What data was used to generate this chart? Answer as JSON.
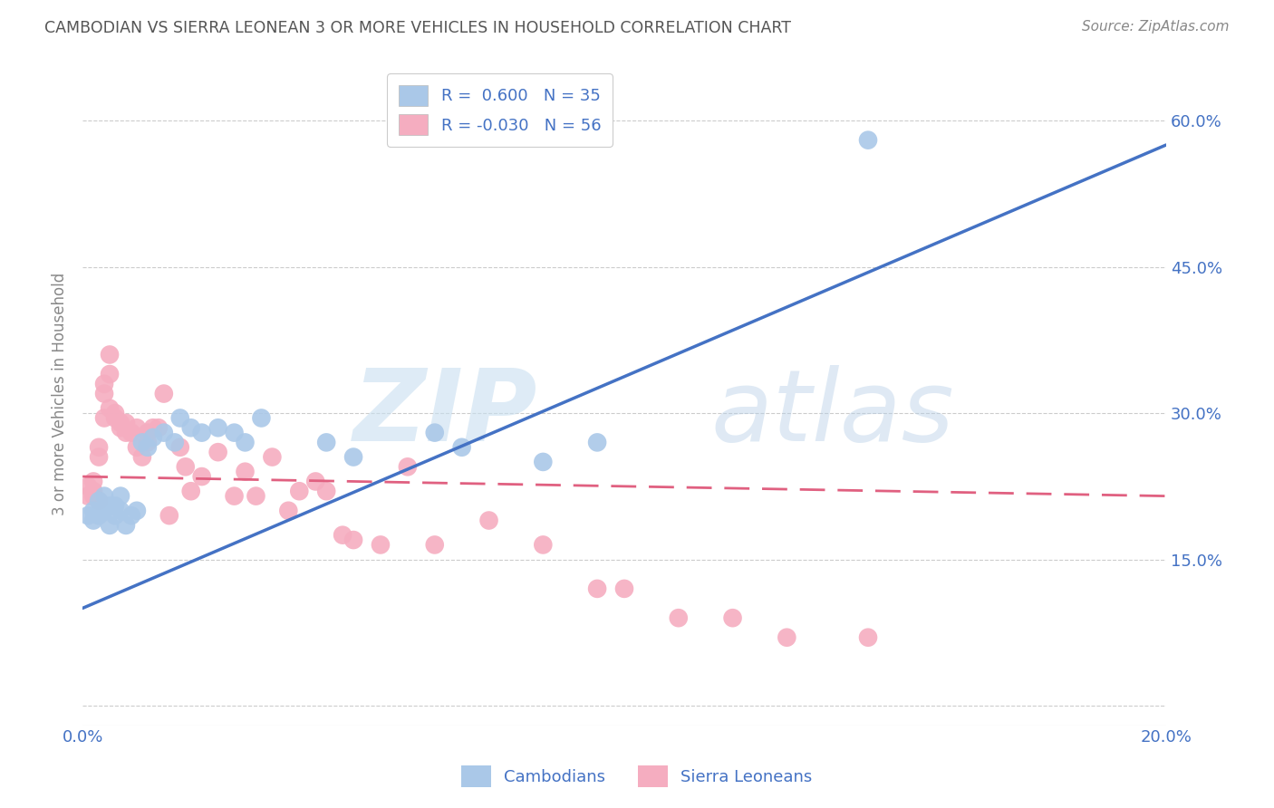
{
  "title": "CAMBODIAN VS SIERRA LEONEAN 3 OR MORE VEHICLES IN HOUSEHOLD CORRELATION CHART",
  "source": "Source: ZipAtlas.com",
  "ylabel": "3 or more Vehicles in Household",
  "xmin": 0.0,
  "xmax": 0.2,
  "ymin": -0.02,
  "ymax": 0.66,
  "yticks": [
    0.0,
    0.15,
    0.3,
    0.45,
    0.6
  ],
  "ytick_labels_right": [
    "",
    "15.0%",
    "30.0%",
    "45.0%",
    "60.0%"
  ],
  "xticks": [
    0.0,
    0.05,
    0.1,
    0.15,
    0.2
  ],
  "xtick_labels": [
    "0.0%",
    "",
    "",
    "",
    "20.0%"
  ],
  "cambodian_R": 0.6,
  "cambodian_N": 35,
  "sierraleone_R": -0.03,
  "sierraleone_N": 56,
  "cambodian_color": "#aac8e8",
  "sierraleone_color": "#f5adc0",
  "cambodian_line_color": "#4472c4",
  "sierraleone_line_color": "#e06080",
  "background_color": "#ffffff",
  "grid_color": "#cccccc",
  "watermark_zip": "ZIP",
  "watermark_atlas": "atlas",
  "title_color": "#555555",
  "source_color": "#888888",
  "axis_label_color": "#888888",
  "tick_color": "#4472c4",
  "legend_text_color": "#4472c4",
  "cambodian_x": [
    0.001,
    0.002,
    0.002,
    0.003,
    0.003,
    0.004,
    0.004,
    0.005,
    0.005,
    0.006,
    0.006,
    0.007,
    0.007,
    0.008,
    0.009,
    0.01,
    0.011,
    0.012,
    0.013,
    0.015,
    0.017,
    0.018,
    0.02,
    0.022,
    0.025,
    0.028,
    0.03,
    0.033,
    0.045,
    0.05,
    0.065,
    0.07,
    0.085,
    0.095,
    0.145
  ],
  "cambodian_y": [
    0.195,
    0.19,
    0.2,
    0.195,
    0.21,
    0.2,
    0.215,
    0.205,
    0.185,
    0.205,
    0.195,
    0.215,
    0.2,
    0.185,
    0.195,
    0.2,
    0.27,
    0.265,
    0.275,
    0.28,
    0.27,
    0.295,
    0.285,
    0.28,
    0.285,
    0.28,
    0.27,
    0.295,
    0.27,
    0.255,
    0.28,
    0.265,
    0.25,
    0.27,
    0.58
  ],
  "sierraleone_x": [
    0.001,
    0.001,
    0.002,
    0.002,
    0.002,
    0.003,
    0.003,
    0.003,
    0.004,
    0.004,
    0.004,
    0.005,
    0.005,
    0.005,
    0.006,
    0.006,
    0.007,
    0.007,
    0.008,
    0.008,
    0.009,
    0.01,
    0.01,
    0.011,
    0.012,
    0.012,
    0.013,
    0.014,
    0.015,
    0.016,
    0.018,
    0.019,
    0.02,
    0.022,
    0.025,
    0.028,
    0.03,
    0.032,
    0.035,
    0.038,
    0.04,
    0.043,
    0.045,
    0.048,
    0.05,
    0.055,
    0.06,
    0.065,
    0.075,
    0.085,
    0.095,
    0.1,
    0.11,
    0.12,
    0.13,
    0.145
  ],
  "sierraleone_y": [
    0.215,
    0.225,
    0.23,
    0.22,
    0.215,
    0.265,
    0.255,
    0.21,
    0.32,
    0.33,
    0.295,
    0.36,
    0.34,
    0.305,
    0.3,
    0.295,
    0.29,
    0.285,
    0.29,
    0.28,
    0.28,
    0.265,
    0.285,
    0.255,
    0.28,
    0.27,
    0.285,
    0.285,
    0.32,
    0.195,
    0.265,
    0.245,
    0.22,
    0.235,
    0.26,
    0.215,
    0.24,
    0.215,
    0.255,
    0.2,
    0.22,
    0.23,
    0.22,
    0.175,
    0.17,
    0.165,
    0.245,
    0.165,
    0.19,
    0.165,
    0.12,
    0.12,
    0.09,
    0.09,
    0.07,
    0.07
  ],
  "blue_line_x0": 0.0,
  "blue_line_y0": 0.1,
  "blue_line_x1": 0.2,
  "blue_line_y1": 0.575,
  "pink_line_x0": 0.0,
  "pink_line_y0": 0.235,
  "pink_line_x1": 0.2,
  "pink_line_y1": 0.215
}
